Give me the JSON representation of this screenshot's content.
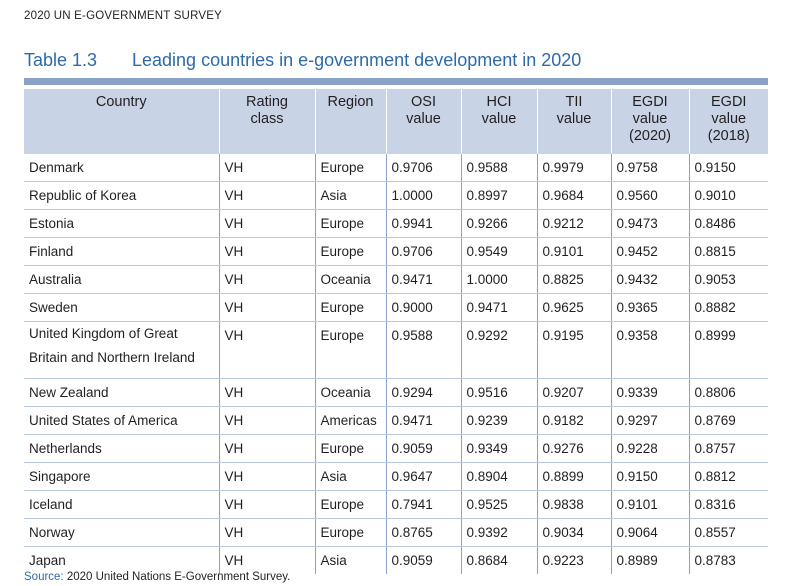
{
  "header": {
    "running_head": "2020 UN E-GOVERNMENT SURVEY"
  },
  "title": {
    "number": "Table 1.3",
    "text": "Leading countries in e-government development in 2020"
  },
  "table": {
    "columns": [
      [
        "Country"
      ],
      [
        "Rating",
        "class"
      ],
      [
        "Region"
      ],
      [
        "OSI",
        "value"
      ],
      [
        "HCI",
        "value"
      ],
      [
        "TII",
        "value"
      ],
      [
        "EGDI",
        "value",
        "(2020)"
      ],
      [
        "EGDI",
        "value",
        "(2018)"
      ]
    ],
    "rows": [
      [
        "Denmark",
        "VH",
        "Europe",
        "0.9706",
        "0.9588",
        "0.9979",
        "0.9758",
        "0.9150"
      ],
      [
        "Republic of Korea",
        "VH",
        "Asia",
        "1.0000",
        "0.8997",
        "0.9684",
        "0.9560",
        "0.9010"
      ],
      [
        "Estonia",
        "VH",
        "Europe",
        "0.9941",
        "0.9266",
        "0.9212",
        "0.9473",
        "0.8486"
      ],
      [
        "Finland",
        "VH",
        "Europe",
        "0.9706",
        "0.9549",
        "0.9101",
        "0.9452",
        "0.8815"
      ],
      [
        "Australia",
        "VH",
        "Oceania",
        "0.9471",
        "1.0000",
        "0.8825",
        "0.9432",
        "0.9053"
      ],
      [
        "Sweden",
        "VH",
        "Europe",
        "0.9000",
        "0.9471",
        "0.9625",
        "0.9365",
        "0.8882"
      ],
      [
        "United Kingdom of Great Britain and Northern Ireland",
        "VH",
        "Europe",
        "0.9588",
        "0.9292",
        "0.9195",
        "0.9358",
        "0.8999"
      ],
      [
        "New Zealand",
        "VH",
        "Oceania",
        "0.9294",
        "0.9516",
        "0.9207",
        "0.9339",
        "0.8806"
      ],
      [
        "United States of America",
        "VH",
        "Americas",
        "0.9471",
        "0.9239",
        "0.9182",
        "0.9297",
        "0.8769"
      ],
      [
        "Netherlands",
        "VH",
        "Europe",
        "0.9059",
        "0.9349",
        "0.9276",
        "0.9228",
        "0.8757"
      ],
      [
        "Singapore",
        "VH",
        "Asia",
        "0.9647",
        "0.8904",
        "0.8899",
        "0.9150",
        "0.8812"
      ],
      [
        "Iceland",
        "VH",
        "Europe",
        "0.7941",
        "0.9525",
        "0.9838",
        "0.9101",
        "0.8316"
      ],
      [
        "Norway",
        "VH",
        "Europe",
        "0.8765",
        "0.9392",
        "0.9034",
        "0.9064",
        "0.8557"
      ],
      [
        "Japan",
        "VH",
        "Asia",
        "0.9059",
        "0.8684",
        "0.9223",
        "0.8989",
        "0.8783"
      ]
    ]
  },
  "source": {
    "label": "Source:",
    "text": "2020 United Nations E-Government Survey."
  },
  "colors": {
    "title_blue": "#2f6aa8",
    "header_fill": "#c8d3e6",
    "rule": "#8aa2c6"
  }
}
